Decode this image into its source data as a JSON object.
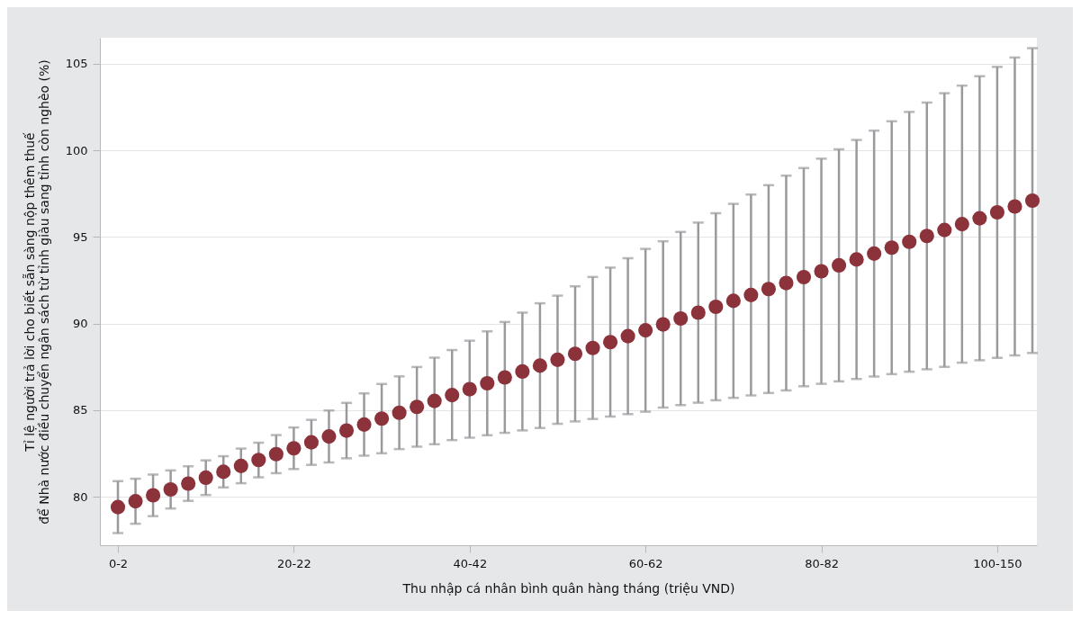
{
  "chart_data": {
    "type": "scatter",
    "xlabel": "Thu nhập cá nhân bình quân hàng tháng (triệu VND)",
    "ylabel": "Tỉ lệ người trả lời cho biết sẵn sàng nộp thêm thuế\nđể Nhà nước điều chuyển ngân sách từ tỉnh giàu sang tỉnh còn nghèo (%)",
    "categories": [
      "0-2",
      null,
      null,
      null,
      null,
      null,
      null,
      null,
      null,
      null,
      "20-22",
      null,
      null,
      null,
      null,
      null,
      null,
      null,
      null,
      null,
      "40-42",
      null,
      null,
      null,
      null,
      null,
      null,
      null,
      null,
      null,
      "60-62",
      null,
      null,
      null,
      null,
      null,
      null,
      null,
      null,
      null,
      "80-82",
      null,
      null,
      null,
      null,
      null,
      null,
      null,
      null,
      null,
      "100-150",
      null,
      null
    ],
    "series": [
      {
        "color": "#8b323a",
        "values": [
          79.4,
          79.74,
          80.08,
          80.42,
          80.76,
          81.1,
          81.44,
          81.78,
          82.12,
          82.46,
          82.8,
          83.14,
          83.48,
          83.82,
          84.17,
          84.51,
          84.85,
          85.19,
          85.53,
          85.87,
          86.21,
          86.55,
          86.89,
          87.23,
          87.57,
          87.91,
          88.25,
          88.59,
          88.93,
          89.27,
          89.61,
          89.95,
          90.29,
          90.63,
          90.97,
          91.31,
          91.65,
          91.99,
          92.34,
          92.68,
          93.02,
          93.36,
          93.7,
          94.04,
          94.38,
          94.72,
          95.06,
          95.4,
          95.74,
          96.08,
          96.42,
          96.76,
          97.1
        ],
        "errors": [
          1.5,
          1.3,
          1.2,
          1.1,
          1.0,
          1.0,
          0.9,
          1.0,
          1.0,
          1.1,
          1.2,
          1.3,
          1.5,
          1.6,
          1.8,
          2.0,
          2.1,
          2.3,
          2.5,
          2.6,
          2.8,
          3.0,
          3.2,
          3.4,
          3.6,
          3.7,
          3.9,
          4.1,
          4.3,
          4.5,
          4.7,
          4.8,
          5.0,
          5.2,
          5.4,
          5.6,
          5.8,
          6.0,
          6.2,
          6.3,
          6.5,
          6.7,
          6.9,
          7.1,
          7.3,
          7.5,
          7.7,
          7.9,
          8.0,
          8.2,
          8.4,
          8.6,
          8.8
        ]
      }
    ],
    "ylim": [
      77.2,
      106.5
    ],
    "yticks": [
      80,
      85,
      90,
      95,
      100,
      105
    ],
    "grid": "y",
    "marker": "circle"
  }
}
